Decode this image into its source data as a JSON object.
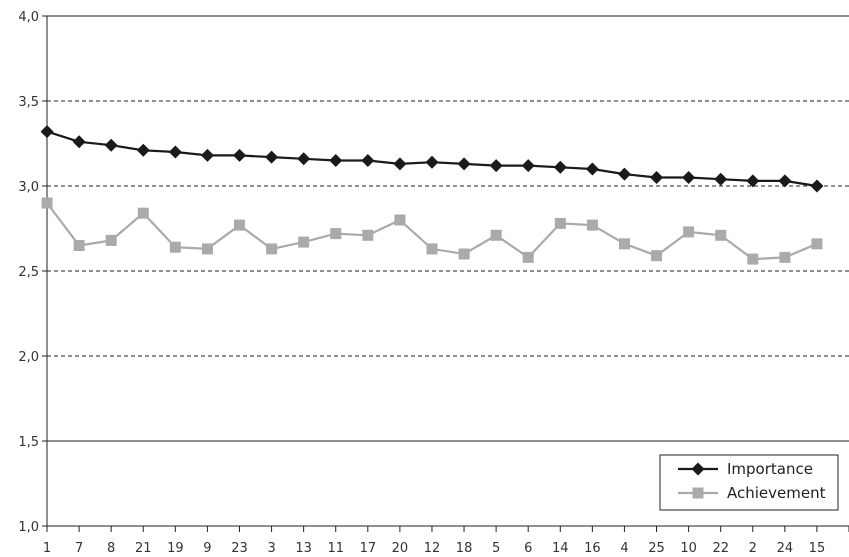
{
  "chart_data": {
    "type": "line",
    "categories": [
      "1",
      "7",
      "8",
      "21",
      "19",
      "9",
      "23",
      "3",
      "13",
      "11",
      "17",
      "20",
      "12",
      "18",
      "5",
      "6",
      "14",
      "16",
      "4",
      "25",
      "10",
      "22",
      "2",
      "24",
      "15"
    ],
    "series": [
      {
        "name": "Importance",
        "color": "#1a1a1a",
        "marker": "diamond",
        "values": [
          3.32,
          3.26,
          3.24,
          3.21,
          3.2,
          3.18,
          3.18,
          3.17,
          3.16,
          3.15,
          3.15,
          3.13,
          3.14,
          3.13,
          3.12,
          3.12,
          3.11,
          3.1,
          3.07,
          3.05,
          3.05,
          3.04,
          3.03,
          3.03,
          3.0
        ]
      },
      {
        "name": "Achievement",
        "color": "#aaaaaa",
        "marker": "square",
        "values": [
          2.9,
          2.65,
          2.68,
          2.84,
          2.64,
          2.63,
          2.77,
          2.63,
          2.67,
          2.72,
          2.71,
          2.8,
          2.63,
          2.6,
          2.71,
          2.58,
          2.78,
          2.77,
          2.66,
          2.59,
          2.73,
          2.71,
          2.57,
          2.58,
          2.66
        ]
      }
    ],
    "yticks": [
      "1,0",
      "1,5",
      "2,0",
      "2,5",
      "3,0",
      "3,5",
      "4,0"
    ],
    "ylim": [
      1.0,
      4.0
    ],
    "ytick_values": [
      1.0,
      1.5,
      2.0,
      2.5,
      3.0,
      3.5,
      4.0
    ],
    "gridlines": {
      "dashed": [
        2.0,
        2.5,
        3.0,
        3.5
      ],
      "solid": [
        1.5,
        4.0
      ]
    },
    "legend_position": "bottom-right"
  }
}
